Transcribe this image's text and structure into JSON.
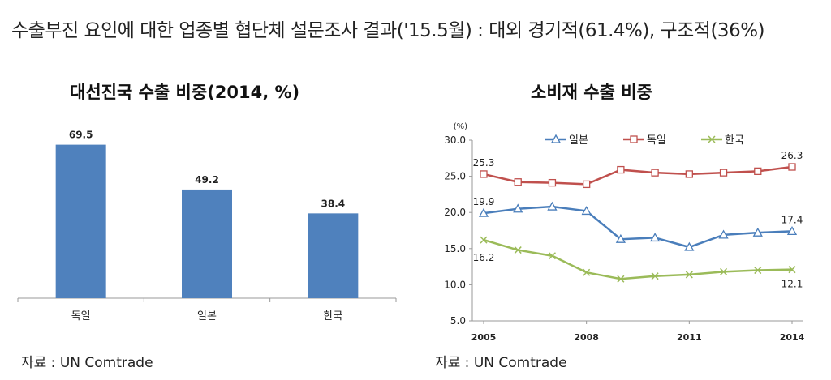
{
  "headline": "수출부진 요인에 대한 업종별 협단체 설문조사 결과('15.5월) : 대외 경기적(61.4%), 구조적(36%)",
  "chart_data": [
    {
      "type": "bar",
      "title": "대선진국 수출 비중(2014, %)",
      "categories": [
        "독일",
        "일본",
        "한국"
      ],
      "values": [
        69.5,
        49.2,
        38.4
      ],
      "value_labels": [
        "69.5",
        "49.2",
        "38.4"
      ],
      "ylim": [
        0,
        80
      ],
      "grid": false,
      "bar_color": "#4f81bd",
      "source": "자료 : UN Comtrade"
    },
    {
      "type": "line",
      "title": "소비재 수출 비중",
      "unit": "(%)",
      "x": [
        2005,
        2006,
        2007,
        2008,
        2009,
        2010,
        2011,
        2012,
        2013,
        2014
      ],
      "x_tick_labels": [
        "2005",
        "2008",
        "2011",
        "2014"
      ],
      "x_ticks": [
        2005,
        2008,
        2011,
        2014
      ],
      "ylim": [
        5,
        30
      ],
      "y_ticks": [
        "5.0",
        "10.0",
        "15.0",
        "20.0",
        "25.0",
        "30.0"
      ],
      "legend": "top",
      "grid": false,
      "series": [
        {
          "name": "일본",
          "color": "#4a7ebb",
          "marker": "triangle",
          "values": [
            19.9,
            20.5,
            20.8,
            20.2,
            16.3,
            16.5,
            15.2,
            16.9,
            17.2,
            17.4
          ]
        },
        {
          "name": "독일",
          "color": "#c0504d",
          "marker": "square",
          "values": [
            25.3,
            24.2,
            24.1,
            23.9,
            25.9,
            25.5,
            25.3,
            25.5,
            25.7,
            26.3
          ]
        },
        {
          "name": "한국",
          "color": "#9bbb59",
          "marker": "x",
          "values": [
            16.2,
            14.8,
            14.0,
            11.7,
            10.8,
            11.2,
            11.4,
            11.8,
            12.0,
            12.1
          ]
        }
      ],
      "annotations": [
        {
          "series": "독일",
          "index": 0,
          "text": "25.3"
        },
        {
          "series": "독일",
          "index": 9,
          "text": "26.3"
        },
        {
          "series": "일본",
          "index": 0,
          "text": "19.9"
        },
        {
          "series": "일본",
          "index": 9,
          "text": "17.4"
        },
        {
          "series": "한국",
          "index": 0,
          "text": "16.2"
        },
        {
          "series": "한국",
          "index": 9,
          "text": "12.1"
        }
      ],
      "source": "자료 : UN Comtrade"
    }
  ]
}
